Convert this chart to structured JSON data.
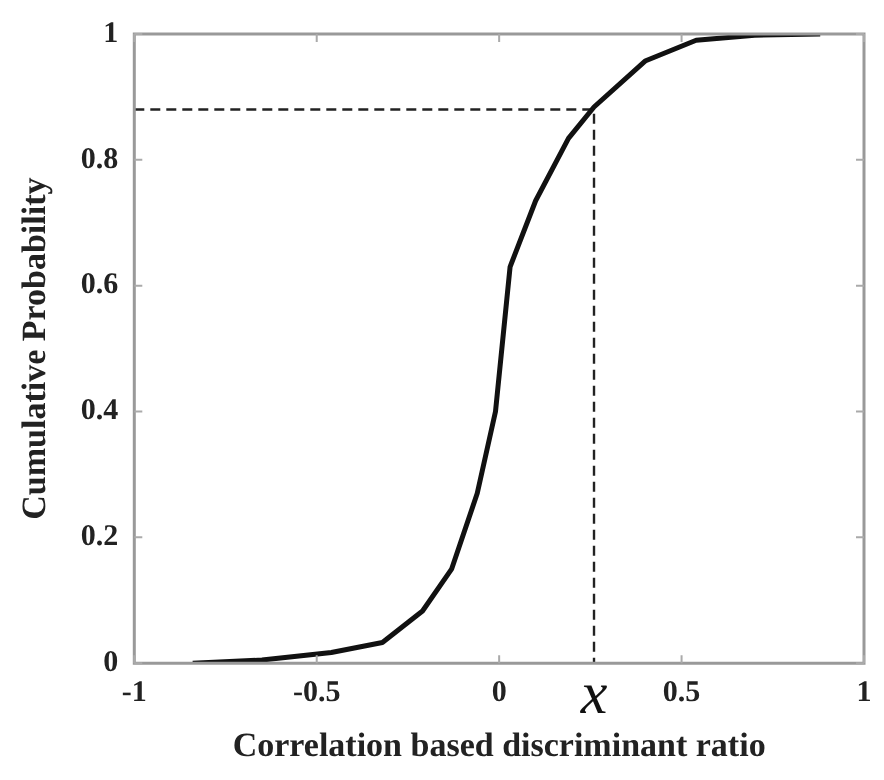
{
  "chart_data": {
    "type": "line",
    "xlabel": "Correlation based discriminant ratio",
    "ylabel": "Cumulative Probability",
    "xlim": [
      -1,
      1
    ],
    "xticks": [
      -1,
      -0.5,
      0,
      0.5,
      1
    ],
    "ylim": [
      0,
      1
    ],
    "yticks": [
      0,
      0.2,
      0.4,
      0.6,
      0.8,
      1
    ],
    "grid": false,
    "legend": false,
    "marker": "none",
    "series": [
      {
        "color": "#111111",
        "line_style": "solid",
        "x": [
          -0.84,
          -0.65,
          -0.46,
          -0.32,
          -0.21,
          -0.13,
          -0.06,
          -0.01,
          0.03,
          0.1,
          0.19,
          0.26,
          0.4,
          0.54,
          0.7,
          0.88
        ],
        "values": [
          0,
          0.005,
          0.017,
          0.033,
          0.083,
          0.15,
          0.27,
          0.4,
          0.63,
          0.735,
          0.834,
          0.884,
          0.957,
          0.99,
          0.998,
          1
        ]
      },
      {
        "color": "#222222",
        "line_style": "dashed",
        "x": [
          -1,
          0.26,
          0.26
        ],
        "values": [
          0.88,
          0.88,
          0
        ]
      }
    ],
    "annotations": [
      {
        "text": "x",
        "x": 0.26,
        "y": 0
      }
    ]
  }
}
